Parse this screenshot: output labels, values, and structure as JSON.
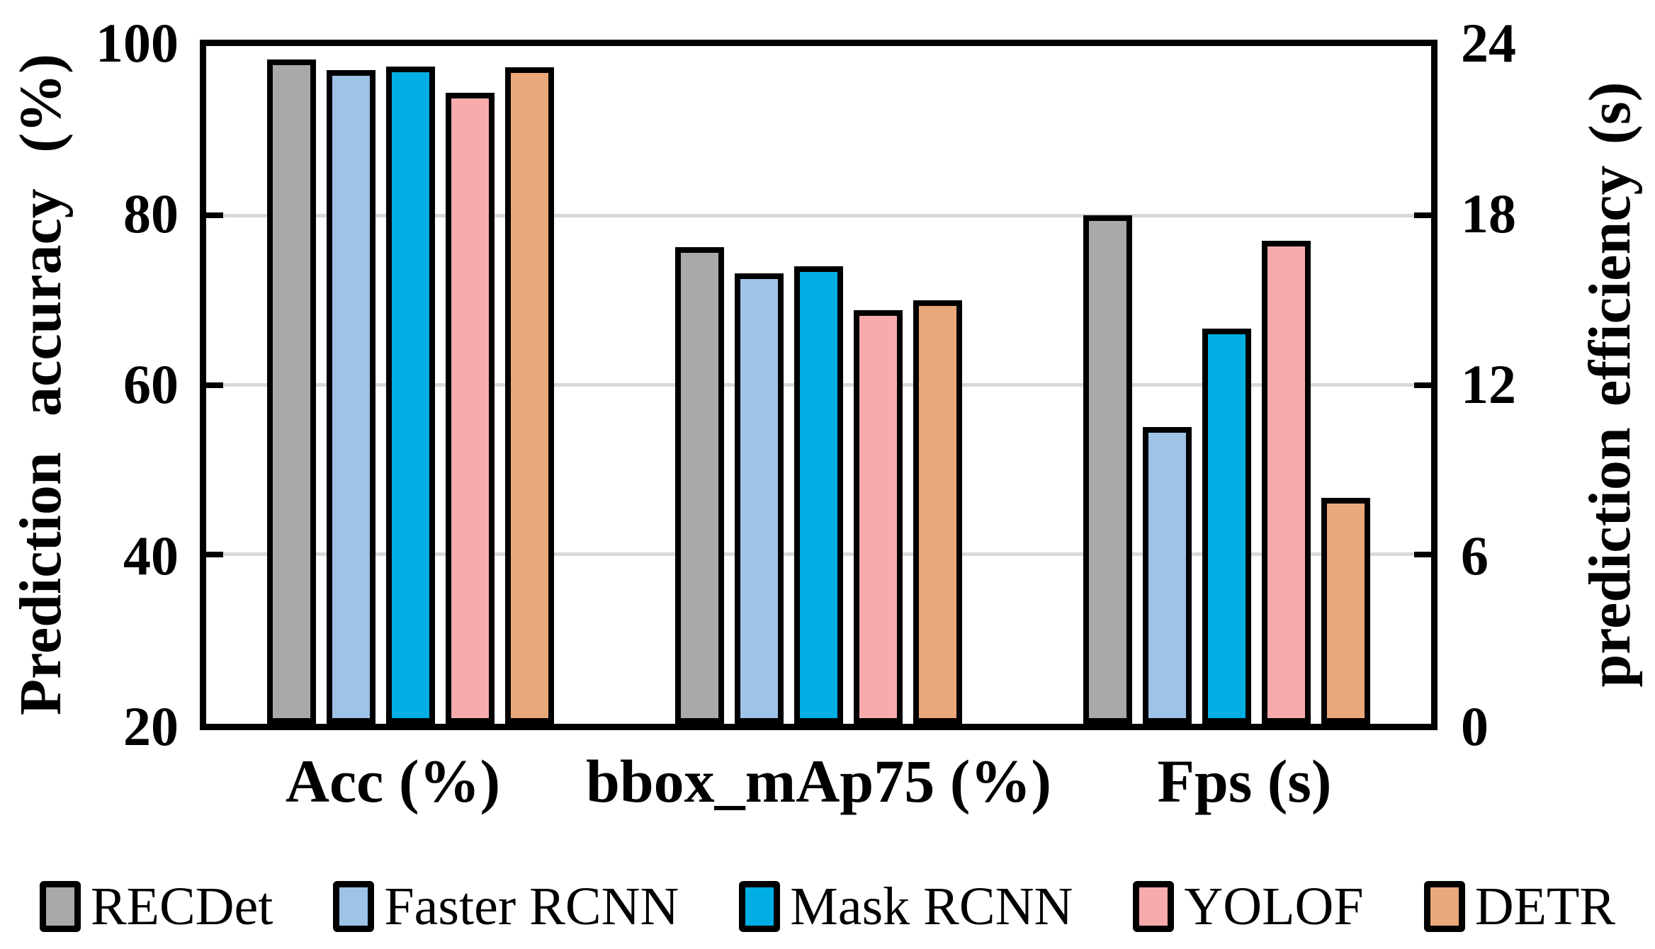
{
  "chart_data": {
    "type": "bar",
    "title": "",
    "categories": [
      "Acc (%)",
      "bbox_mAp75 (%)",
      "Fps (s)"
    ],
    "category_axis": [
      "left",
      "left",
      "right"
    ],
    "series": [
      {
        "name": "RECDet",
        "color": "#A9A9A9",
        "values": [
          98.4,
          76.3,
          18.0
        ]
      },
      {
        "name": "Faster RCNN",
        "color": "#9DC3E6",
        "values": [
          97.2,
          73.2,
          10.5
        ]
      },
      {
        "name": "Mask RCNN",
        "color": "#00AEE4",
        "values": [
          97.6,
          74.0,
          14.0
        ]
      },
      {
        "name": "YOLOF",
        "color": "#F8ABAD",
        "values": [
          94.5,
          68.8,
          17.1
        ]
      },
      {
        "name": "DETR",
        "color": "#E9A87A",
        "values": [
          97.5,
          70.0,
          8.0
        ]
      }
    ],
    "left_axis": {
      "label": "Prediction accuracy (%)",
      "min": 20,
      "max": 100,
      "ticks": [
        100,
        80,
        60,
        40,
        20
      ]
    },
    "right_axis": {
      "label": "prediction efficiency (s)",
      "min": 0,
      "max": 24,
      "ticks": [
        24,
        18,
        12,
        6,
        0
      ]
    },
    "gridlines": {
      "color": "#D9D9D9",
      "at_left_axis_values": [
        80,
        60,
        40
      ]
    },
    "legend_position": "bottom",
    "frame_color": "#000000",
    "bar_outline_color": "#000000"
  }
}
